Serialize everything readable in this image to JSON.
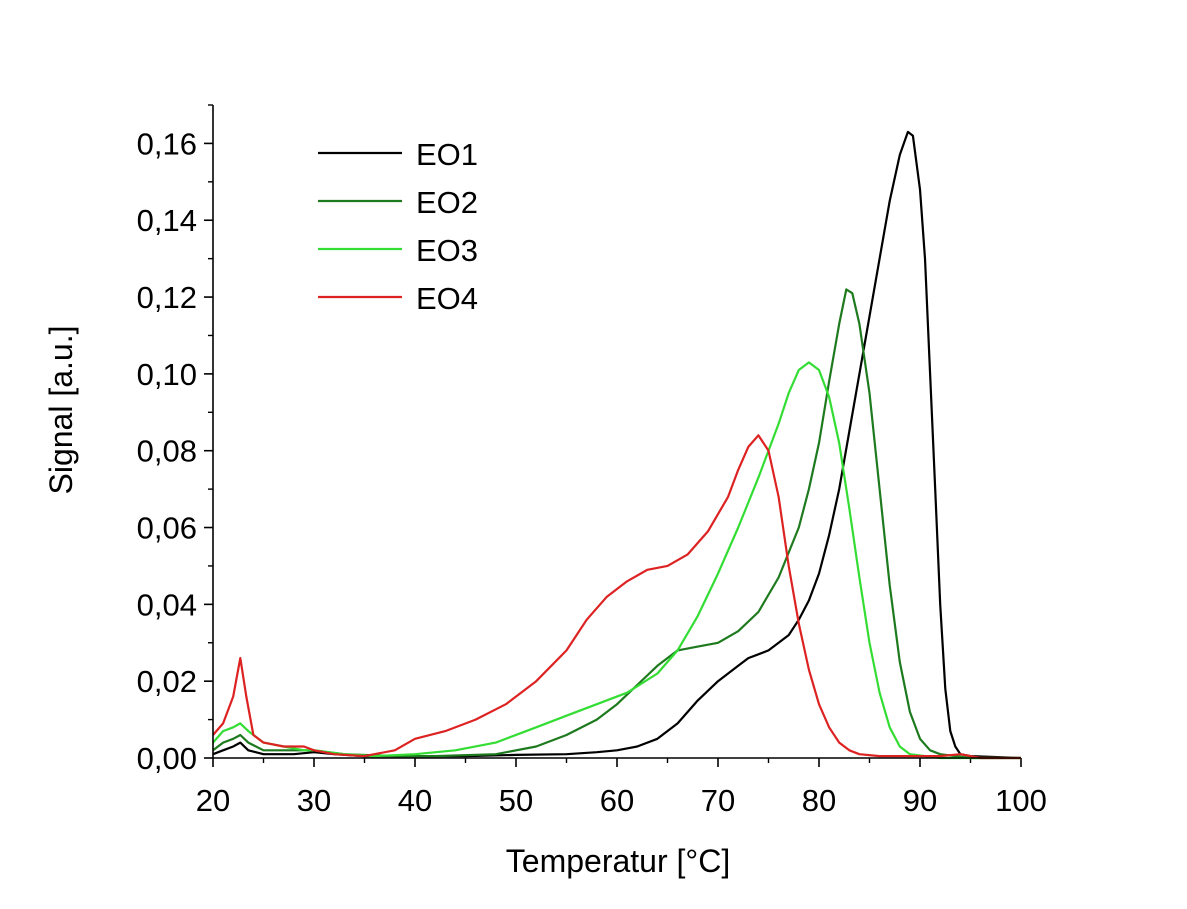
{
  "chart_data": {
    "type": "line",
    "xlabel": "Temperatur [°C]",
    "ylabel": "Signal [a.u.]",
    "xlim": [
      20,
      100
    ],
    "ylim": [
      0,
      0.17
    ],
    "x_ticks": [
      20,
      30,
      40,
      50,
      60,
      70,
      80,
      90,
      100
    ],
    "x_tick_labels": [
      "20",
      "30",
      "40",
      "50",
      "60",
      "70",
      "80",
      "90",
      "100"
    ],
    "y_ticks": [
      0,
      0.02,
      0.04,
      0.06,
      0.08,
      0.1,
      0.12,
      0.14,
      0.16
    ],
    "y_tick_labels": [
      "0,00",
      "0,02",
      "0,04",
      "0,06",
      "0,08",
      "0,10",
      "0,12",
      "0,14",
      "0,16"
    ],
    "grid": false,
    "legend_position": "top-left",
    "series": [
      {
        "name": "EO1",
        "color": "#000000",
        "points": [
          [
            20,
            0.001
          ],
          [
            21,
            0.002
          ],
          [
            22,
            0.003
          ],
          [
            22.7,
            0.004
          ],
          [
            23.5,
            0.002
          ],
          [
            25,
            0.001
          ],
          [
            28,
            0.001
          ],
          [
            30,
            0.0015
          ],
          [
            32,
            0.001
          ],
          [
            35,
            0.0005
          ],
          [
            40,
            0.0005
          ],
          [
            45,
            0.0005
          ],
          [
            50,
            0.0008
          ],
          [
            55,
            0.001
          ],
          [
            58,
            0.0015
          ],
          [
            60,
            0.002
          ],
          [
            62,
            0.003
          ],
          [
            64,
            0.005
          ],
          [
            66,
            0.009
          ],
          [
            68,
            0.015
          ],
          [
            70,
            0.02
          ],
          [
            72,
            0.024
          ],
          [
            73,
            0.026
          ],
          [
            74,
            0.027
          ],
          [
            75,
            0.028
          ],
          [
            76,
            0.03
          ],
          [
            77,
            0.032
          ],
          [
            78,
            0.036
          ],
          [
            79,
            0.041
          ],
          [
            80,
            0.048
          ],
          [
            81,
            0.058
          ],
          [
            82,
            0.07
          ],
          [
            83,
            0.085
          ],
          [
            84,
            0.1
          ],
          [
            85,
            0.115
          ],
          [
            86,
            0.13
          ],
          [
            87,
            0.145
          ],
          [
            88,
            0.157
          ],
          [
            88.8,
            0.163
          ],
          [
            89.3,
            0.162
          ],
          [
            90,
            0.148
          ],
          [
            90.5,
            0.13
          ],
          [
            91,
            0.1
          ],
          [
            91.5,
            0.07
          ],
          [
            92,
            0.04
          ],
          [
            92.5,
            0.018
          ],
          [
            93,
            0.007
          ],
          [
            93.5,
            0.003
          ],
          [
            94,
            0.001
          ],
          [
            95,
            0.0005
          ],
          [
            97,
            0.0003
          ],
          [
            100,
            0.0
          ]
        ]
      },
      {
        "name": "EO2",
        "color": "#1e7a1e",
        "points": [
          [
            20,
            0.002
          ],
          [
            21,
            0.004
          ],
          [
            22,
            0.005
          ],
          [
            22.7,
            0.006
          ],
          [
            23.5,
            0.004
          ],
          [
            25,
            0.002
          ],
          [
            28,
            0.002
          ],
          [
            30,
            0.002
          ],
          [
            33,
            0.001
          ],
          [
            38,
            0.0005
          ],
          [
            42,
            0.0005
          ],
          [
            48,
            0.001
          ],
          [
            52,
            0.003
          ],
          [
            55,
            0.006
          ],
          [
            58,
            0.01
          ],
          [
            60,
            0.014
          ],
          [
            62,
            0.019
          ],
          [
            64,
            0.024
          ],
          [
            66,
            0.028
          ],
          [
            68,
            0.029
          ],
          [
            70,
            0.03
          ],
          [
            72,
            0.033
          ],
          [
            74,
            0.038
          ],
          [
            76,
            0.047
          ],
          [
            78,
            0.06
          ],
          [
            79,
            0.07
          ],
          [
            80,
            0.082
          ],
          [
            81,
            0.098
          ],
          [
            82,
            0.113
          ],
          [
            82.7,
            0.122
          ],
          [
            83.3,
            0.121
          ],
          [
            84,
            0.113
          ],
          [
            85,
            0.095
          ],
          [
            86,
            0.07
          ],
          [
            87,
            0.045
          ],
          [
            88,
            0.025
          ],
          [
            89,
            0.012
          ],
          [
            90,
            0.005
          ],
          [
            91,
            0.002
          ],
          [
            92,
            0.001
          ],
          [
            95,
            0.0
          ],
          [
            100,
            0.0
          ]
        ]
      },
      {
        "name": "EO3",
        "color": "#33dd33",
        "points": [
          [
            20,
            0.004
          ],
          [
            21,
            0.007
          ],
          [
            22,
            0.008
          ],
          [
            22.7,
            0.009
          ],
          [
            23.5,
            0.007
          ],
          [
            25,
            0.004
          ],
          [
            27,
            0.003
          ],
          [
            29,
            0.002
          ],
          [
            30,
            0.002
          ],
          [
            33,
            0.001
          ],
          [
            36,
            0.0005
          ],
          [
            40,
            0.001
          ],
          [
            44,
            0.002
          ],
          [
            48,
            0.004
          ],
          [
            52,
            0.008
          ],
          [
            55,
            0.011
          ],
          [
            58,
            0.014
          ],
          [
            61,
            0.017
          ],
          [
            64,
            0.022
          ],
          [
            66,
            0.028
          ],
          [
            68,
            0.037
          ],
          [
            70,
            0.048
          ],
          [
            72,
            0.06
          ],
          [
            74,
            0.073
          ],
          [
            76,
            0.087
          ],
          [
            77,
            0.095
          ],
          [
            78,
            0.101
          ],
          [
            79,
            0.103
          ],
          [
            80,
            0.101
          ],
          [
            81,
            0.094
          ],
          [
            82,
            0.082
          ],
          [
            83,
            0.065
          ],
          [
            84,
            0.047
          ],
          [
            85,
            0.03
          ],
          [
            86,
            0.017
          ],
          [
            87,
            0.008
          ],
          [
            88,
            0.003
          ],
          [
            89,
            0.001
          ],
          [
            92,
            0.0
          ],
          [
            100,
            0.0
          ]
        ]
      },
      {
        "name": "EO4",
        "color": "#dd2222",
        "points": [
          [
            20,
            0.006
          ],
          [
            21,
            0.009
          ],
          [
            22,
            0.016
          ],
          [
            22.7,
            0.026
          ],
          [
            23.3,
            0.016
          ],
          [
            24,
            0.006
          ],
          [
            25,
            0.004
          ],
          [
            27,
            0.003
          ],
          [
            29,
            0.003
          ],
          [
            30,
            0.002
          ],
          [
            32,
            0.001
          ],
          [
            35,
            0.0005
          ],
          [
            38,
            0.002
          ],
          [
            40,
            0.005
          ],
          [
            43,
            0.007
          ],
          [
            46,
            0.01
          ],
          [
            49,
            0.014
          ],
          [
            52,
            0.02
          ],
          [
            55,
            0.028
          ],
          [
            57,
            0.036
          ],
          [
            59,
            0.042
          ],
          [
            61,
            0.046
          ],
          [
            63,
            0.049
          ],
          [
            65,
            0.05
          ],
          [
            67,
            0.053
          ],
          [
            69,
            0.059
          ],
          [
            71,
            0.068
          ],
          [
            72,
            0.075
          ],
          [
            73,
            0.081
          ],
          [
            74,
            0.084
          ],
          [
            75,
            0.08
          ],
          [
            76,
            0.068
          ],
          [
            77,
            0.05
          ],
          [
            78,
            0.035
          ],
          [
            79,
            0.023
          ],
          [
            80,
            0.014
          ],
          [
            81,
            0.008
          ],
          [
            82,
            0.004
          ],
          [
            83,
            0.002
          ],
          [
            84,
            0.001
          ],
          [
            86,
            0.0005
          ],
          [
            92,
            0.0005
          ],
          [
            94,
            0.001
          ],
          [
            96,
            0.0
          ],
          [
            100,
            0.0
          ]
        ]
      }
    ]
  }
}
